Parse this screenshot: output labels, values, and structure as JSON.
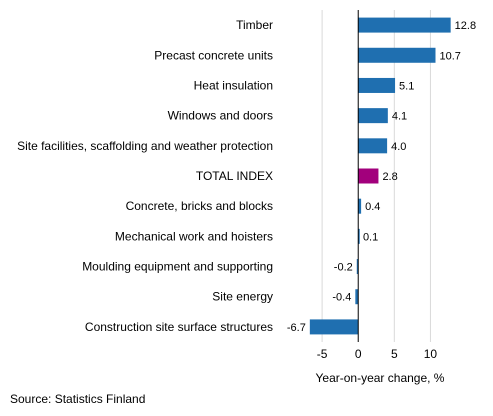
{
  "chart_data": {
    "type": "bar",
    "orientation": "horizontal",
    "categories": [
      "Timber",
      "Precast concrete units",
      "Heat insulation",
      "Windows and doors",
      "Site facilities, scaffolding and weather protection",
      "TOTAL INDEX",
      "Concrete, bricks and blocks",
      "Mechanical work and hoisters",
      "Moulding equipment and supporting",
      "Site energy",
      "Construction site surface structures"
    ],
    "values": [
      12.8,
      10.7,
      5.1,
      4.1,
      4.0,
      2.8,
      0.4,
      0.1,
      -0.2,
      -0.4,
      -6.7
    ],
    "value_labels": [
      "12.8",
      "10.7",
      "5.1",
      "4.1",
      "4.0",
      "2.8",
      "0.4",
      "0.1",
      "-0.2",
      "-0.4",
      "-6.7"
    ],
    "xlabel": "Year-on-year change, %",
    "xticks": [
      "-5",
      "0",
      "5",
      "10"
    ],
    "xtick_values": [
      -5,
      0,
      5,
      10
    ],
    "xlim": [
      -10,
      17
    ],
    "grid": true,
    "colors": {
      "default": "#1f6fb0",
      "highlight": "#a2007c"
    },
    "highlight_category": "TOTAL INDEX"
  },
  "source": "Source: Statistics Finland"
}
